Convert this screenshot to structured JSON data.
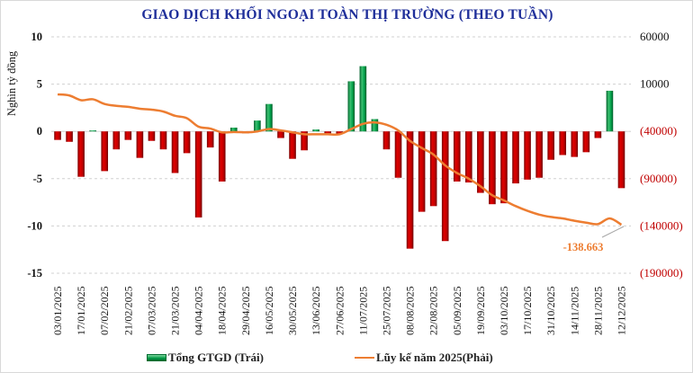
{
  "chart_data": {
    "type": "bar+line",
    "title": "GIAO DỊCH KHỐI NGOẠI TOÀN THỊ TRƯỜNG (THEO TUẦN)",
    "ylabel_left": "Nghìn tỷ đồng",
    "ylim_left": [
      -15,
      10
    ],
    "yticks_left": [
      "10",
      "5",
      "0",
      "-5",
      "-10",
      "-15"
    ],
    "ylim_right": [
      -190000,
      60000
    ],
    "yticks_right": [
      "60000",
      "10000",
      "(40000)",
      "(90000)",
      "(140000)",
      "(190000)"
    ],
    "x_tick_labels": [
      "03/01/2025",
      "17/01/2025",
      "07/02/2025",
      "21/02/2025",
      "07/03/2025",
      "21/03/2025",
      "04/04/2025",
      "18/04/2025",
      "29/04/2025",
      "16/05/2025",
      "30/05/2025",
      "13/06/2025",
      "27/06/2025",
      "11/07/2025",
      "25/07/2025",
      "08/08/2025",
      "22/08/2025",
      "05/09/2025",
      "19/09/2025",
      "03/10/2025",
      "17/10/2025",
      "31/10/2025",
      "14/11/2025",
      "28/11/2025",
      "12/12/2025"
    ],
    "x_tick_every": 2,
    "grid": true,
    "legend_position": "bottom",
    "series": [
      {
        "name": "Tổng GTGD (Trái)",
        "type": "bar",
        "axis": "left",
        "color_positive": "#00a04a",
        "color_negative": "#c00000",
        "values": [
          -0.9,
          -1.1,
          -4.8,
          0.1,
          -4.2,
          -1.9,
          -0.9,
          -2.8,
          -1.0,
          -1.9,
          -4.4,
          -2.3,
          -9.1,
          -1.7,
          -5.3,
          0.4,
          -0.2,
          1.15,
          2.9,
          -0.7,
          -2.9,
          -2.0,
          0.2,
          -0.2,
          -0.3,
          5.3,
          6.9,
          1.3,
          -1.9,
          -4.9,
          -12.4,
          -8.5,
          -7.9,
          -11.6,
          -5.3,
          -5.4,
          -6.5,
          -7.7,
          -7.6,
          -5.5,
          -5.1,
          -4.9,
          -3.0,
          -2.5,
          -2.7,
          -2.2,
          -0.7,
          4.3,
          -6.0
        ]
      },
      {
        "name": "Lũy kế năm 2025(Phải)",
        "type": "line",
        "axis": "right",
        "color": "#ed7d31",
        "values": [
          -900,
          -2000,
          -7000,
          -6000,
          -11000,
          -13000,
          -14000,
          -16000,
          -17000,
          -19000,
          -23500,
          -26000,
          -35000,
          -37000,
          -41000,
          -40600,
          -41000,
          -40000,
          -37500,
          -39000,
          -41000,
          -43000,
          -43000,
          -43000,
          -43000,
          -37500,
          -32000,
          -30500,
          -33000,
          -39000,
          -50000,
          -57500,
          -64500,
          -76000,
          -84000,
          -90000,
          -98000,
          -107500,
          -113000,
          -119000,
          -124000,
          -128000,
          -130500,
          -132000,
          -134500,
          -136500,
          -138000,
          -132000,
          -138663
        ]
      }
    ],
    "annotations": [
      {
        "text": "-138.663",
        "color": "#ed7d31"
      }
    ],
    "right_tick_colors": {
      "positive": "#111111",
      "negative": "#c00000"
    }
  }
}
